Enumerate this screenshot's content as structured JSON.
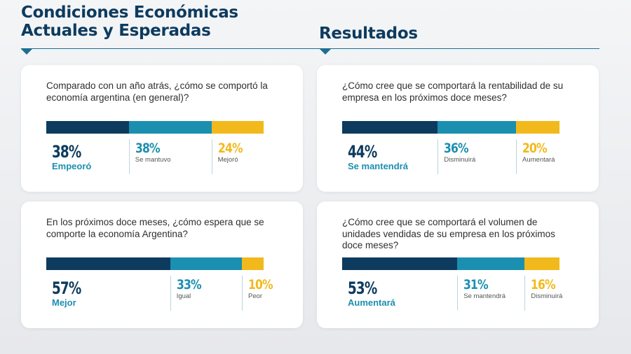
{
  "header": {
    "left_title_line1": "Condiciones Económicas",
    "left_title_line2": "Actuales y Esperadas",
    "right_title": "Resultados"
  },
  "colors": {
    "dark": "#0d3b5e",
    "teal": "#1b8fb0",
    "yellow": "#f2b91c"
  },
  "cards": [
    {
      "question": "Comparado con un año atrás, ¿cómo se comportó la economía argentina (en general)?",
      "results": [
        {
          "pct": "38%",
          "label": "Empeoró",
          "value": 38
        },
        {
          "pct": "38%",
          "label": "Se mantuvo",
          "value": 38
        },
        {
          "pct": "24%",
          "label": "Mejoró",
          "value": 24
        }
      ]
    },
    {
      "question": "¿Cómo cree que se comportará la rentabilidad de su empresa en los próximos doce meses?",
      "results": [
        {
          "pct": "44%",
          "label": "Se mantendrá",
          "value": 44
        },
        {
          "pct": "36%",
          "label": "Disminuirá",
          "value": 36
        },
        {
          "pct": "20%",
          "label": "Aumentará",
          "value": 20
        }
      ]
    },
    {
      "question": "En los próximos doce meses, ¿cómo espera que se comporte la economía Argentina?",
      "results": [
        {
          "pct": "57%",
          "label": "Mejor",
          "value": 57
        },
        {
          "pct": "33%",
          "label": "Igual",
          "value": 33
        },
        {
          "pct": "10%",
          "label": "Peor",
          "value": 10
        }
      ]
    },
    {
      "question": "¿Cómo cree que se comportará el volumen de unidades vendidas de su empresa en los próximos doce meses?",
      "results": [
        {
          "pct": "53%",
          "label": "Aumentará",
          "value": 53
        },
        {
          "pct": "31%",
          "label": "Se mantendrá",
          "value": 31
        },
        {
          "pct": "16%",
          "label": "Disminuirá",
          "value": 16
        }
      ]
    }
  ]
}
